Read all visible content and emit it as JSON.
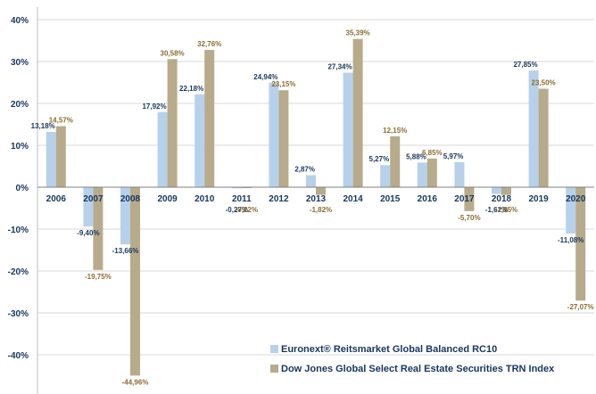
{
  "chart_data": {
    "type": "bar",
    "categories": [
      "2006",
      "2007",
      "2008",
      "2009",
      "2010",
      "2011",
      "2012",
      "2013",
      "2014",
      "2015",
      "2016",
      "2017",
      "2018",
      "2019",
      "2020"
    ],
    "series": [
      {
        "name": "Euronext® Reitsmarket Global Balanced RC10",
        "color": "#b7d1ea",
        "values": [
          13.18,
          -9.4,
          -13.66,
          17.92,
          22.18,
          -0.27,
          24.94,
          2.87,
          27.34,
          5.27,
          5.88,
          5.97,
          -1.62,
          27.85,
          -11.08
        ],
        "labels": [
          "13,18%",
          "-9,40%",
          "-13,66%",
          "17,92%",
          "22,18%",
          "-0,27%",
          "24,94%",
          "2,87%",
          "27,34%",
          "5,27%",
          "5,88%",
          "5,97%",
          "-1,62%",
          "27,85%",
          "-11,08%"
        ]
      },
      {
        "name": "Dow Jones Global Select Real Estate Securities TRN Index",
        "color": "#b7ab8c",
        "values": [
          14.57,
          -19.75,
          -44.96,
          30.58,
          32.76,
          -0.22,
          23.15,
          -1.82,
          35.39,
          12.15,
          6.85,
          -5.7,
          -1.85,
          23.5,
          -27.07
        ],
        "labels": [
          "14,57%",
          "-19,75%",
          "-44,96%",
          "30,58%",
          "32,76%",
          "-0,22%",
          "23,15%",
          "-1,82%",
          "35,39%",
          "12,15%",
          "6,85%",
          "-5,70%",
          "-1,85%",
          "23,50%",
          "-27,07%"
        ]
      }
    ],
    "yticks": [
      40,
      30,
      20,
      10,
      0,
      -10,
      -20,
      -30,
      -40
    ],
    "ytick_labels": [
      "40%",
      "30%",
      "20%",
      "10%",
      "0%",
      "-10%",
      "-20%",
      "-30%",
      "-40%"
    ],
    "ylim": [
      -50,
      40
    ],
    "grid": true,
    "legend_position": "bottom-right",
    "title": "",
    "xlabel": "",
    "ylabel": ""
  }
}
